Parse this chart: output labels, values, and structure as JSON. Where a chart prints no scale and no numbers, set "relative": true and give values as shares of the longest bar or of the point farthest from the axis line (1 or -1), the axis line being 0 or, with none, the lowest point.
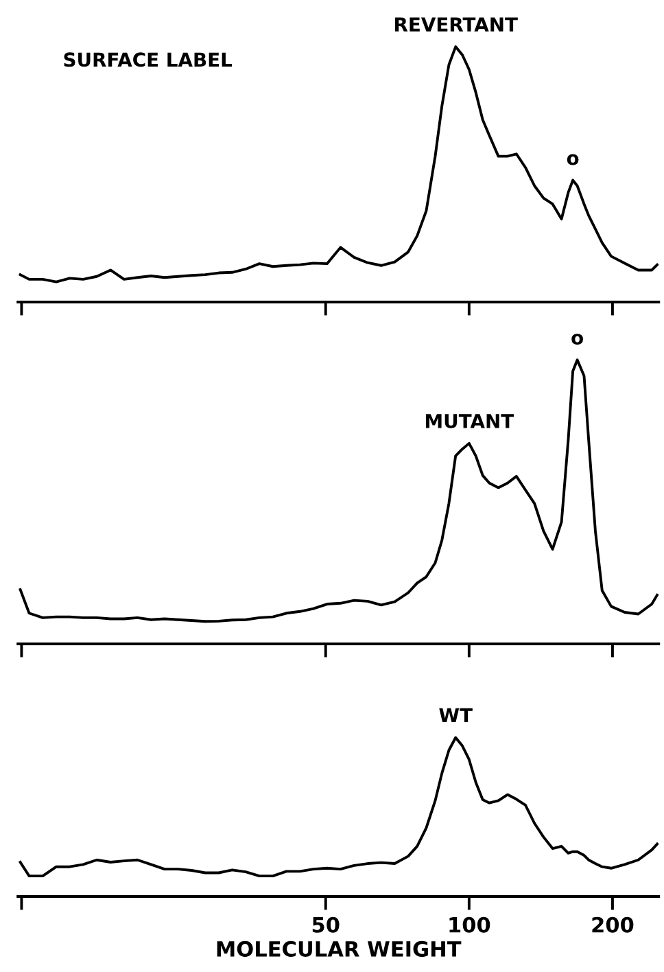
{
  "chart_data": [
    {
      "type": "line",
      "relative": true,
      "tick_labels": false,
      "xlim": [
        11.3,
        250
      ],
      "log": "x",
      "xticks": [
        {
          "value": 11.5,
          "label": null
        },
        {
          "value": 50,
          "label": null
        },
        {
          "value": 100,
          "label": null
        },
        {
          "value": 200,
          "label": null
        }
      ],
      "x": [
        11.43,
        11.93,
        12.74,
        13.6,
        14.51,
        15.49,
        16.54,
        17.68,
        18.87,
        20.14,
        21.5,
        22.95,
        24.5,
        26.16,
        27.93,
        29.82,
        31.83,
        33.98,
        36.29,
        38.74,
        41.36,
        44.16,
        47.14,
        50.33,
        53.73,
        57.36,
        61.24,
        65.37,
        69.8,
        74.5,
        77.8,
        81.3,
        84.9,
        87.7,
        90.7,
        93.7,
        96.8,
        100,
        103.3,
        106.8,
        110.3,
        115.2,
        120.4,
        125.7,
        131.3,
        137.2,
        143.3,
        149.7,
        156.3,
        161.5,
        165.1,
        168.7,
        174.3,
        178.2,
        184.1,
        190.2,
        198.7,
        212.1,
        226.5,
        241.8,
        248.2
      ],
      "series": [
        {
          "color": "#000000",
          "values": [
            0.107,
            0.089,
            0.089,
            0.079,
            0.093,
            0.089,
            0.1,
            0.125,
            0.089,
            0.096,
            0.102,
            0.096,
            0.1,
            0.104,
            0.107,
            0.114,
            0.116,
            0.129,
            0.15,
            0.139,
            0.143,
            0.146,
            0.152,
            0.15,
            0.214,
            0.175,
            0.154,
            0.143,
            0.157,
            0.196,
            0.259,
            0.357,
            0.571,
            0.768,
            0.929,
            1.0,
            0.968,
            0.911,
            0.821,
            0.714,
            0.652,
            0.571,
            0.571,
            0.58,
            0.527,
            0.455,
            0.407,
            0.384,
            0.325,
            0.429,
            0.477,
            0.455,
            0.384,
            0.339,
            0.286,
            0.232,
            0.179,
            0.152,
            0.125,
            0.125,
            0.146
          ]
        }
      ],
      "annotations": [
        "SURFACE LABEL",
        {
          "text": "REVERTANT",
          "x": 93.7,
          "y": 1.0
        },
        {
          "text": "o",
          "x": 165.1,
          "y": 0.477
        }
      ]
    },
    {
      "type": "line",
      "relative": true,
      "tick_labels": false,
      "xlim": [
        11.3,
        250
      ],
      "log": "x",
      "xticks": [
        {
          "value": 11.5,
          "label": null
        },
        {
          "value": 50,
          "label": null
        },
        {
          "value": 100,
          "label": null
        },
        {
          "value": 200,
          "label": null
        }
      ],
      "x": [
        11.43,
        11.93,
        12.74,
        13.6,
        14.51,
        15.49,
        16.54,
        17.68,
        18.87,
        20.14,
        21.5,
        22.95,
        24.5,
        26.16,
        27.93,
        29.82,
        31.83,
        33.98,
        36.29,
        38.74,
        41.36,
        44.16,
        47.14,
        50.33,
        53.73,
        57.36,
        61.24,
        65.37,
        69.8,
        74.5,
        77.8,
        81.3,
        84.9,
        87.7,
        90.7,
        93.7,
        96.8,
        100,
        103.3,
        106.8,
        110.3,
        115.2,
        120.4,
        125.7,
        131.3,
        137.2,
        143.3,
        149.7,
        156.3,
        161.5,
        165.1,
        168.7,
        174.3,
        178.2,
        184.1,
        190.2,
        198.7,
        212.1,
        226.5,
        241.8,
        248.2
      ],
      "series": [
        {
          "color": "#000000",
          "values": [
            0.191,
            0.108,
            0.092,
            0.095,
            0.095,
            0.092,
            0.092,
            0.088,
            0.088,
            0.092,
            0.085,
            0.088,
            0.085,
            0.082,
            0.079,
            0.08,
            0.084,
            0.085,
            0.092,
            0.095,
            0.108,
            0.114,
            0.124,
            0.14,
            0.143,
            0.153,
            0.15,
            0.137,
            0.148,
            0.18,
            0.214,
            0.236,
            0.285,
            0.365,
            0.494,
            0.662,
            0.686,
            0.706,
            0.662,
            0.593,
            0.566,
            0.55,
            0.566,
            0.59,
            0.542,
            0.494,
            0.397,
            0.333,
            0.429,
            0.719,
            0.96,
            1.0,
            0.944,
            0.719,
            0.397,
            0.188,
            0.132,
            0.111,
            0.105,
            0.14,
            0.172
          ]
        }
      ],
      "annotations": [
        {
          "text": "MUTANT",
          "x": 100,
          "y": 0.706
        },
        {
          "text": "o",
          "x": 168.7,
          "y": 1.0
        }
      ]
    },
    {
      "type": "line",
      "relative": true,
      "tick_labels": "x",
      "xlim": [
        11.3,
        250
      ],
      "log": "x",
      "xlabel": "MOLECULAR WEIGHT",
      "xticks": [
        {
          "value": 11.5,
          "label": null
        },
        50,
        100,
        200
      ],
      "x": [
        11.43,
        11.93,
        12.74,
        13.6,
        14.51,
        15.49,
        16.54,
        17.68,
        18.87,
        20.14,
        21.5,
        22.95,
        24.5,
        26.16,
        27.93,
        29.82,
        31.83,
        33.98,
        36.29,
        38.74,
        41.36,
        44.16,
        47.14,
        50.33,
        53.73,
        57.36,
        61.24,
        65.37,
        69.8,
        74.5,
        77.8,
        81.3,
        84.9,
        87.7,
        90.7,
        93.7,
        96.8,
        100,
        103.3,
        106.8,
        110.3,
        115.2,
        120.4,
        125.7,
        131.3,
        137.2,
        143.3,
        149.7,
        156.3,
        161.5,
        165.1,
        168.7,
        174.3,
        178.2,
        184.1,
        190.2,
        198.7,
        212.1,
        226.5,
        241.8,
        248.2
      ],
      "series": [
        {
          "color": "#000000",
          "values": [
            0.216,
            0.129,
            0.129,
            0.187,
            0.187,
            0.201,
            0.23,
            0.216,
            0.224,
            0.23,
            0.201,
            0.172,
            0.172,
            0.164,
            0.149,
            0.149,
            0.167,
            0.155,
            0.129,
            0.129,
            0.158,
            0.158,
            0.172,
            0.178,
            0.172,
            0.195,
            0.207,
            0.213,
            0.207,
            0.253,
            0.316,
            0.431,
            0.603,
            0.776,
            0.92,
            1.0,
            0.948,
            0.862,
            0.718,
            0.609,
            0.589,
            0.603,
            0.641,
            0.612,
            0.575,
            0.46,
            0.374,
            0.302,
            0.316,
            0.273,
            0.282,
            0.282,
            0.259,
            0.23,
            0.207,
            0.187,
            0.178,
            0.201,
            0.23,
            0.293,
            0.33
          ]
        }
      ],
      "annotations": [
        {
          "text": "WT",
          "x": 93.7,
          "y": 1.0
        }
      ]
    }
  ]
}
